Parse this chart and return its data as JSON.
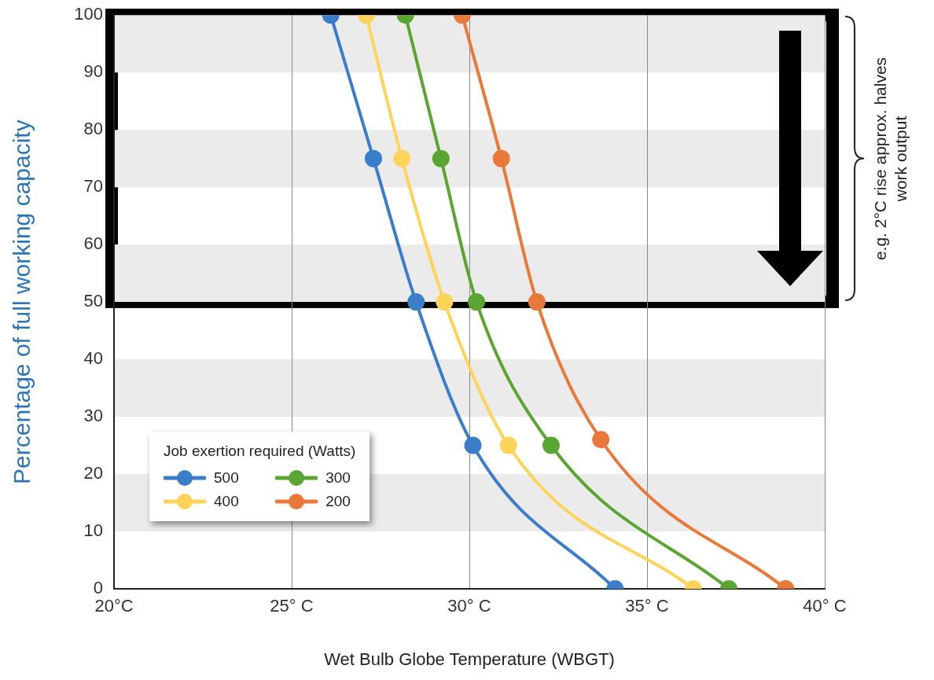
{
  "chart_data": {
    "type": "line",
    "xlabel": "Wet Bulb Globe Temperature (WBGT)",
    "ylabel": "Percentage of full working capacity",
    "legend_title": "Job exertion required (Watts)",
    "xlim": [
      20,
      40
    ],
    "xticks": [
      {
        "value": 20,
        "label": "20°C"
      },
      {
        "value": 25,
        "label": "25° C"
      },
      {
        "value": 30,
        "label": "30° C"
      },
      {
        "value": 35,
        "label": "35° C"
      },
      {
        "value": 40,
        "label": "40° C"
      }
    ],
    "ylim": [
      0,
      100
    ],
    "yticks": [
      0,
      10,
      20,
      30,
      40,
      50,
      60,
      70,
      80,
      90,
      100
    ],
    "grid": "x",
    "legend": "bottom left",
    "marker": "circle",
    "line_style": "solid",
    "bands": [
      {
        "axis": "y",
        "from": 10,
        "to": 20,
        "color": "#ebebeb"
      },
      {
        "axis": "y",
        "from": 30,
        "to": 40,
        "color": "#ebebeb"
      },
      {
        "axis": "y",
        "from": 50,
        "to": 60,
        "color": "#ebebeb"
      },
      {
        "axis": "y",
        "from": 70,
        "to": 80,
        "color": "#ebebeb"
      },
      {
        "axis": "y",
        "from": 90,
        "to": 100,
        "color": "#ebebeb"
      }
    ],
    "annotations": [
      "e.g. 2°C rise approx. halves work output"
    ],
    "series": [
      {
        "name": "500",
        "color": "#3a7dc9",
        "x": [
          26.1,
          27.3,
          28.5,
          30.1,
          34.1
        ],
        "values": [
          100,
          75,
          50,
          25,
          0
        ]
      },
      {
        "name": "400",
        "color": "#fdd35a",
        "x": [
          27.1,
          28.1,
          29.3,
          31.1,
          36.3
        ],
        "values": [
          100,
          75,
          50,
          25,
          0
        ]
      },
      {
        "name": "300",
        "color": "#5ba532",
        "x": [
          28.2,
          29.2,
          30.2,
          32.3,
          37.3
        ],
        "values": [
          100,
          75,
          50,
          25,
          0
        ]
      },
      {
        "name": "200",
        "color": "#e8793a",
        "x": [
          29.8,
          30.9,
          31.9,
          33.7,
          38.9
        ],
        "values": [
          100,
          75,
          50,
          26,
          0
        ]
      }
    ]
  }
}
